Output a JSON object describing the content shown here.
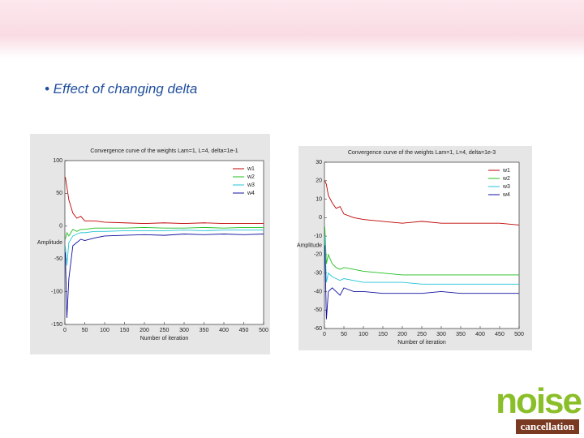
{
  "slide": {
    "bullet": "• Effect of changing  delta",
    "logo_word": "noise",
    "logo_subtitle": "cancellation"
  },
  "chart_data": [
    {
      "type": "line",
      "title": "Convergence curve of the weights Lam=1, L=4, delta=1e-1",
      "xlabel": "Number of iteration",
      "ylabel": "Amplitude",
      "x": [
        1,
        5,
        10,
        20,
        30,
        40,
        50,
        75,
        100,
        150,
        200,
        250,
        300,
        350,
        400,
        450,
        500
      ],
      "xlim": [
        0,
        500
      ],
      "xticks": [
        0,
        50,
        100,
        150,
        200,
        250,
        300,
        350,
        400,
        450,
        500
      ],
      "ylim": [
        -150,
        100
      ],
      "yticks": [
        -150,
        -100,
        -50,
        0,
        50,
        100
      ],
      "series": [
        {
          "name": "w1",
          "color": "#c00000",
          "values": [
            75,
            60,
            40,
            20,
            12,
            15,
            8,
            8,
            6,
            5,
            4,
            5,
            4,
            5,
            4,
            4,
            4
          ]
        },
        {
          "name": "w2",
          "color": "#1fbf1f",
          "values": [
            -20,
            -10,
            -15,
            -5,
            -8,
            -5,
            -5,
            -3,
            -3,
            -3,
            -2,
            -3,
            -3,
            -2,
            -3,
            -2,
            -2
          ]
        },
        {
          "name": "w3",
          "color": "#22c4d8",
          "values": [
            -30,
            -60,
            -25,
            -15,
            -12,
            -10,
            -10,
            -8,
            -8,
            -7,
            -7,
            -7,
            -6,
            -7,
            -6,
            -6,
            -6
          ]
        },
        {
          "name": "w4",
          "color": "#1010a0",
          "values": [
            -40,
            -140,
            -80,
            -30,
            -25,
            -20,
            -22,
            -18,
            -15,
            -14,
            -13,
            -14,
            -12,
            -13,
            -12,
            -13,
            -12
          ]
        }
      ]
    },
    {
      "type": "line",
      "title": "Convergence curve of the weights Lam=1, L=4, delta=1e-3",
      "xlabel": "Number of iteration",
      "ylabel": "Amplitude",
      "x": [
        1,
        5,
        10,
        20,
        30,
        40,
        50,
        75,
        100,
        150,
        200,
        250,
        300,
        350,
        400,
        450,
        500
      ],
      "xlim": [
        0,
        500
      ],
      "xticks": [
        0,
        50,
        100,
        150,
        200,
        250,
        300,
        350,
        400,
        450,
        500
      ],
      "ylim": [
        -60,
        30
      ],
      "yticks": [
        -60,
        -50,
        -40,
        -30,
        -20,
        -10,
        0,
        10,
        20,
        30
      ],
      "series": [
        {
          "name": "w1",
          "color": "#c00000",
          "values": [
            20,
            18,
            12,
            8,
            5,
            6,
            2,
            0,
            -1,
            -2,
            -3,
            -2,
            -3,
            -3,
            -3,
            -3,
            -4
          ]
        },
        {
          "name": "w2",
          "color": "#1fbf1f",
          "values": [
            -5,
            -25,
            -20,
            -25,
            -27,
            -28,
            -27,
            -28,
            -29,
            -30,
            -31,
            -31,
            -31,
            -31,
            -31,
            -31,
            -31
          ]
        },
        {
          "name": "w3",
          "color": "#22c4d8",
          "values": [
            -10,
            -35,
            -30,
            -32,
            -33,
            -34,
            -33,
            -34,
            -35,
            -35,
            -35,
            -36,
            -36,
            -36,
            -36,
            -36,
            -36
          ]
        },
        {
          "name": "w4",
          "color": "#1010a0",
          "values": [
            -15,
            -55,
            -40,
            -38,
            -40,
            -42,
            -38,
            -40,
            -40,
            -41,
            -41,
            -41,
            -40,
            -41,
            -41,
            -41,
            -41
          ]
        }
      ]
    }
  ]
}
